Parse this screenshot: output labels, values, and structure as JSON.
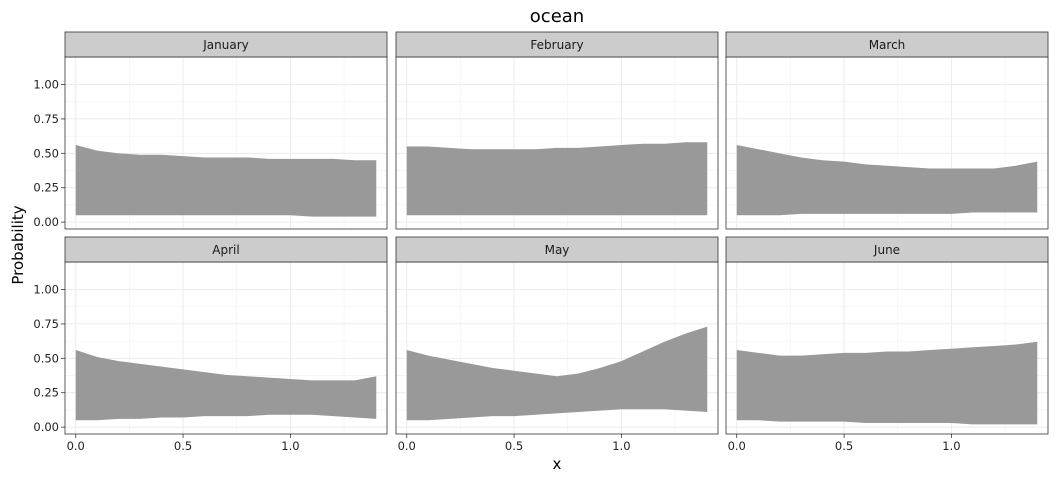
{
  "chart_data": {
    "type": "area",
    "title": "ocean",
    "xlabel": "x",
    "ylabel": "Probability",
    "xlim": [
      -0.05,
      1.45
    ],
    "ylim": [
      -0.05,
      1.2
    ],
    "x_ticks": [
      0.0,
      0.5,
      1.0
    ],
    "x_tick_labels": [
      "0.0",
      "0.5",
      "1.0"
    ],
    "y_ticks": [
      0.0,
      0.25,
      0.5,
      0.75,
      1.0
    ],
    "y_tick_labels": [
      "0.00",
      "0.25",
      "0.50",
      "0.75",
      "1.00"
    ],
    "grid": true,
    "fill_color": "#999999",
    "strip_color": "#cccccc",
    "panels": [
      {
        "label": "January",
        "x": [
          0.0,
          0.1,
          0.2,
          0.3,
          0.4,
          0.5,
          0.6,
          0.7,
          0.8,
          0.9,
          1.0,
          1.1,
          1.2,
          1.3,
          1.4
        ],
        "upper": [
          0.56,
          0.52,
          0.5,
          0.49,
          0.49,
          0.48,
          0.47,
          0.47,
          0.47,
          0.46,
          0.46,
          0.46,
          0.46,
          0.45,
          0.45
        ],
        "lower": [
          0.05,
          0.05,
          0.05,
          0.05,
          0.05,
          0.05,
          0.05,
          0.05,
          0.05,
          0.05,
          0.05,
          0.04,
          0.04,
          0.04,
          0.04
        ]
      },
      {
        "label": "February",
        "x": [
          0.0,
          0.1,
          0.2,
          0.3,
          0.4,
          0.5,
          0.6,
          0.7,
          0.8,
          0.9,
          1.0,
          1.1,
          1.2,
          1.3,
          1.4
        ],
        "upper": [
          0.55,
          0.55,
          0.54,
          0.53,
          0.53,
          0.53,
          0.53,
          0.54,
          0.54,
          0.55,
          0.56,
          0.57,
          0.57,
          0.58,
          0.58
        ],
        "lower": [
          0.05,
          0.05,
          0.05,
          0.05,
          0.05,
          0.05,
          0.05,
          0.05,
          0.05,
          0.05,
          0.05,
          0.05,
          0.05,
          0.05,
          0.05
        ]
      },
      {
        "label": "March",
        "x": [
          0.0,
          0.1,
          0.2,
          0.3,
          0.4,
          0.5,
          0.6,
          0.7,
          0.8,
          0.9,
          1.0,
          1.1,
          1.2,
          1.3,
          1.4
        ],
        "upper": [
          0.56,
          0.53,
          0.5,
          0.47,
          0.45,
          0.44,
          0.42,
          0.41,
          0.4,
          0.39,
          0.39,
          0.39,
          0.39,
          0.41,
          0.44
        ],
        "lower": [
          0.05,
          0.05,
          0.05,
          0.06,
          0.06,
          0.06,
          0.06,
          0.06,
          0.06,
          0.06,
          0.06,
          0.07,
          0.07,
          0.07,
          0.07
        ]
      },
      {
        "label": "April",
        "x": [
          0.0,
          0.1,
          0.2,
          0.3,
          0.4,
          0.5,
          0.6,
          0.7,
          0.8,
          0.9,
          1.0,
          1.1,
          1.2,
          1.3,
          1.4
        ],
        "upper": [
          0.56,
          0.51,
          0.48,
          0.46,
          0.44,
          0.42,
          0.4,
          0.38,
          0.37,
          0.36,
          0.35,
          0.34,
          0.34,
          0.34,
          0.37
        ],
        "lower": [
          0.05,
          0.05,
          0.06,
          0.06,
          0.07,
          0.07,
          0.08,
          0.08,
          0.08,
          0.09,
          0.09,
          0.09,
          0.08,
          0.07,
          0.06
        ]
      },
      {
        "label": "May",
        "x": [
          0.0,
          0.1,
          0.2,
          0.3,
          0.4,
          0.5,
          0.6,
          0.7,
          0.8,
          0.9,
          1.0,
          1.1,
          1.2,
          1.3,
          1.4
        ],
        "upper": [
          0.56,
          0.52,
          0.49,
          0.46,
          0.43,
          0.41,
          0.39,
          0.37,
          0.39,
          0.43,
          0.48,
          0.55,
          0.62,
          0.68,
          0.73
        ],
        "lower": [
          0.05,
          0.05,
          0.06,
          0.07,
          0.08,
          0.08,
          0.09,
          0.1,
          0.11,
          0.12,
          0.13,
          0.13,
          0.13,
          0.12,
          0.11
        ]
      },
      {
        "label": "June",
        "x": [
          0.0,
          0.1,
          0.2,
          0.3,
          0.4,
          0.5,
          0.6,
          0.7,
          0.8,
          0.9,
          1.0,
          1.1,
          1.2,
          1.3,
          1.4
        ],
        "upper": [
          0.56,
          0.54,
          0.52,
          0.52,
          0.53,
          0.54,
          0.54,
          0.55,
          0.55,
          0.56,
          0.57,
          0.58,
          0.59,
          0.6,
          0.62
        ],
        "lower": [
          0.05,
          0.05,
          0.04,
          0.04,
          0.04,
          0.04,
          0.03,
          0.03,
          0.03,
          0.03,
          0.03,
          0.02,
          0.02,
          0.02,
          0.02
        ]
      }
    ]
  }
}
